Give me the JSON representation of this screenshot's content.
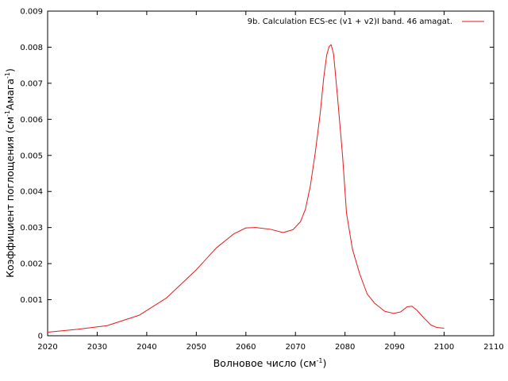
{
  "chart_data": {
    "type": "line",
    "title": "",
    "xlabel": "Волновое число (см",
    "xlabel_sup": "-1",
    "xlabel_tail": ")",
    "ylabel": "Коэффициент поглощения (см",
    "ylabel_sup1": "-1",
    "ylabel_mid": "Амага",
    "ylabel_sup2": "-1",
    "ylabel_tail": ")",
    "xlim": [
      2020,
      2110
    ],
    "ylim": [
      0,
      0.009
    ],
    "xticks": [
      "2020",
      "2030",
      "2040",
      "2050",
      "2060",
      "2070",
      "2080",
      "2090",
      "2100",
      "2110"
    ],
    "yticks": [
      "0",
      "0.001",
      "0.002",
      "0.003",
      "0.004",
      "0.005",
      "0.006",
      "0.007",
      "0.008",
      "0.009"
    ],
    "grid": false,
    "legend_position": "top-right",
    "series_color": "#e41a1c",
    "series": [
      {
        "name": "9b. Calculation ECS-ec (v1 + v2)I band. 46 amagat.",
        "x": [
          2020,
          2026,
          2032,
          2038.5,
          2044,
          2050,
          2054,
          2057.5,
          2060,
          2062,
          2065,
          2067.5,
          2069.5,
          2071,
          2072,
          2073,
          2074,
          2075,
          2075.7,
          2076.3,
          2076.8,
          2077.2,
          2077.7,
          2078.5,
          2079.5,
          2080.3,
          2081.5,
          2083,
          2084.5,
          2086,
          2088,
          2089.8,
          2091.2,
          2092.5,
          2093.5,
          2094.5,
          2096,
          2097.3,
          2098.5,
          2100
        ],
        "y": [
          0.0001,
          0.00018,
          0.00028,
          0.00057,
          0.00105,
          0.00183,
          0.00243,
          0.00282,
          0.00299,
          0.003,
          0.00295,
          0.00286,
          0.00294,
          0.00316,
          0.0035,
          0.00415,
          0.00508,
          0.00617,
          0.00715,
          0.00778,
          0.00802,
          0.00807,
          0.0078,
          0.0066,
          0.005,
          0.0034,
          0.0024,
          0.0017,
          0.00115,
          0.0009,
          0.00068,
          0.00062,
          0.00066,
          0.0008,
          0.00082,
          0.00071,
          0.00048,
          0.0003,
          0.00023,
          0.00021
        ]
      }
    ]
  }
}
